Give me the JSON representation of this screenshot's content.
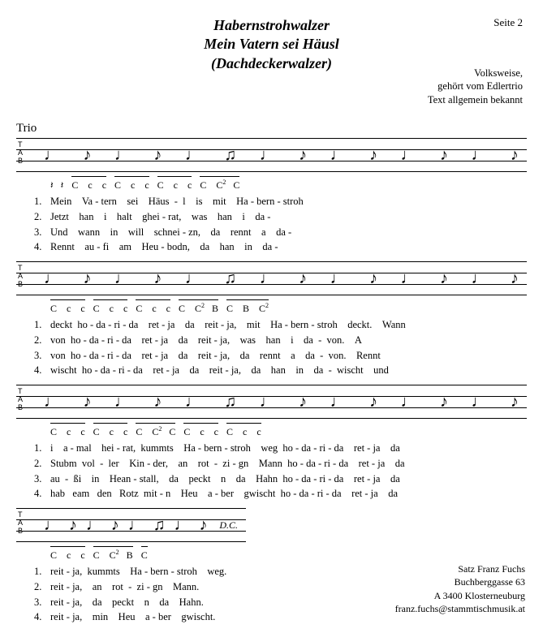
{
  "header": {
    "title1": "Habernstrohwalzer",
    "title2": "Mein Vatern sei Häusl",
    "title3": "(Dachdeckerwalzer)",
    "page": "Seite 2",
    "sub1": "Volksweise,",
    "sub2": "gehört vom Edlertrio",
    "sub3": "Text allgemein bekannt"
  },
  "trio_label": "Trio",
  "tab_label": "T\nA\nB",
  "dc_label": "D.C.",
  "systems": [
    {
      "chords": [
        {
          "t": "≺   ≺",
          "bar": false
        },
        {
          "t": "C    c    c",
          "bar": true
        },
        {
          "t": "C    c    c",
          "bar": true
        },
        {
          "t": "C    c    c",
          "bar": true
        },
        {
          "t": "C    C²   C",
          "bar": true
        }
      ],
      "lyrics": [
        {
          "n": "1.",
          "t": "Mein    Va - tern    sei    Häus  -  l    is    mit    Ha - bern - stroh"
        },
        {
          "n": "2.",
          "t": "Jetzt    han    i    halt    ghei - rat,    was    han    i    da -"
        },
        {
          "n": "3.",
          "t": "Und    wann    in    will    schnei - zn,    da    rennt    a    da -"
        },
        {
          "n": "4.",
          "t": "Rennt    au - fi    am    Heu - bodn,    da    han    in    da -"
        }
      ]
    },
    {
      "chords": [
        {
          "t": "C    c    c",
          "bar": true
        },
        {
          "t": "C    c    c",
          "bar": true
        },
        {
          "t": "C    c    c",
          "bar": true
        },
        {
          "t": "C    C²   B",
          "bar": true
        },
        {
          "t": "C    B    C²",
          "bar": true
        }
      ],
      "lyrics": [
        {
          "n": "1.",
          "t": "deckt  ho - da - ri - da    ret - ja    da    reit - ja,    mit    Ha - bern - stroh    deckt.    Wann"
        },
        {
          "n": "2.",
          "t": "von  ho - da - ri - da    ret - ja    da    reit - ja,    was    han    i    da  -  von.    A"
        },
        {
          "n": "3.",
          "t": "von  ho - da - ri - da    ret - ja    da    reit - ja,    da    rennt    a    da  -  von.    Rennt"
        },
        {
          "n": "4.",
          "t": "wischt  ho - da - ri - da    ret - ja    da    reit - ja,    da    han    in    da  -  wischt    und"
        }
      ]
    },
    {
      "chords": [
        {
          "t": "C    c    c",
          "bar": true
        },
        {
          "t": "C    c    c",
          "bar": true
        },
        {
          "t": "C    C²   C",
          "bar": true
        },
        {
          "t": "C    c    c",
          "bar": true
        },
        {
          "t": "C    c    c",
          "bar": true
        }
      ],
      "lyrics": [
        {
          "n": "1.",
          "t": "i    a - mal    hei - rat,  kummts    Ha - bern - stroh    weg  ho - da - ri - da    ret - ja    da"
        },
        {
          "n": "2.",
          "t": "Stubm  vol  -  ler    Kin - der,    an    rot  -  zi - gn    Mann  ho - da - ri - da    ret - ja    da"
        },
        {
          "n": "3.",
          "t": "au  -  ßi    in    Hean - stall,    da    peckt    n    da    Hahn  ho - da - ri - da    ret - ja    da"
        },
        {
          "n": "4.",
          "t": "hab   eam   den   Rotz  mit - n    Heu    a - ber    gwischt  ho - da - ri - da    ret - ja    da"
        }
      ]
    },
    {
      "chords": [
        {
          "t": "C    c    c",
          "bar": true
        },
        {
          "t": "C    C²   B",
          "bar": true
        },
        {
          "t": "C",
          "bar": true
        }
      ],
      "lyrics": [
        {
          "n": "1.",
          "t": "reit - ja,  kummts    Ha - bern - stroh    weg."
        },
        {
          "n": "2.",
          "t": "reit - ja,    an    rot  -  zi - gn    Mann."
        },
        {
          "n": "3.",
          "t": "reit - ja,    da    peckt    n    da    Hahn."
        },
        {
          "n": "4.",
          "t": "reit - ja,    min    Heu    a - ber    gwischt."
        }
      ],
      "short": true
    }
  ],
  "footer": {
    "l1": "Satz Franz Fuchs",
    "l2": "Buchberggasse 63",
    "l3": "A 3400 Klosterneuburg",
    "l4": "franz.fuchs@stammtischmusik.at"
  },
  "style": {
    "bg": "#ffffff",
    "fg": "#000000",
    "title_fontsize": 18,
    "body_fontsize": 12.5
  }
}
